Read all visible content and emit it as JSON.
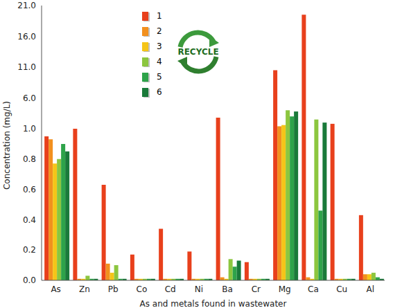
{
  "chart_data": {
    "type": "bar",
    "x_label": "As and metals found in wastewater",
    "y_label": "Concentration (mg/L)",
    "annotations": [
      "RECYCLE"
    ],
    "categories": [
      "As",
      "Zn",
      "Pb",
      "Co",
      "Cd",
      "Ni",
      "Ba",
      "Cr",
      "Mg",
      "Ca",
      "Cu",
      "Al"
    ],
    "series": [
      {
        "name": "1",
        "color": "#e8401c",
        "values": [
          0.95,
          1.0,
          0.63,
          0.17,
          0.34,
          0.19,
          2.8,
          0.12,
          10.5,
          19.5,
          1.8,
          0.43
        ]
      },
      {
        "name": "2",
        "color": "#f2901e",
        "values": [
          0.93,
          0.01,
          0.11,
          0.01,
          0.01,
          0.01,
          0.02,
          0.01,
          1.4,
          0.02,
          0.01,
          0.04
        ]
      },
      {
        "name": "3",
        "color": "#f5c518",
        "values": [
          0.77,
          0.01,
          0.05,
          0.01,
          0.01,
          0.01,
          0.01,
          0.01,
          1.6,
          0.01,
          0.01,
          0.04
        ]
      },
      {
        "name": "4",
        "color": "#8cc63f",
        "values": [
          0.8,
          0.03,
          0.1,
          0.01,
          0.01,
          0.01,
          0.14,
          0.01,
          4.0,
          2.5,
          0.01,
          0.05
        ]
      },
      {
        "name": "5",
        "color": "#2ea34a",
        "values": [
          0.9,
          0.01,
          0.01,
          0.01,
          0.01,
          0.01,
          0.09,
          0.01,
          3.0,
          0.46,
          0.01,
          0.02
        ]
      },
      {
        "name": "6",
        "color": "#1a7a3a",
        "values": [
          0.85,
          0.01,
          0.01,
          0.01,
          0.01,
          0.01,
          0.13,
          0.01,
          3.8,
          2.0,
          0.01,
          0.01
        ]
      }
    ],
    "ylim": [
      0,
      21
    ],
    "yticks": [
      {
        "value": 0,
        "label": "0.0"
      },
      {
        "value": 0.2,
        "label": "0.2"
      },
      {
        "value": 0.4,
        "label": "0.4"
      },
      {
        "value": 0.6,
        "label": "0.6"
      },
      {
        "value": 0.8,
        "label": "0.8"
      },
      {
        "value": 1,
        "label": "1.0"
      },
      {
        "value": 6,
        "label": "6.0"
      },
      {
        "value": 11,
        "label": "11.0"
      },
      {
        "value": 16,
        "label": "16.0"
      },
      {
        "value": 21,
        "label": "21.0"
      }
    ],
    "legend": "top",
    "grid": false
  }
}
